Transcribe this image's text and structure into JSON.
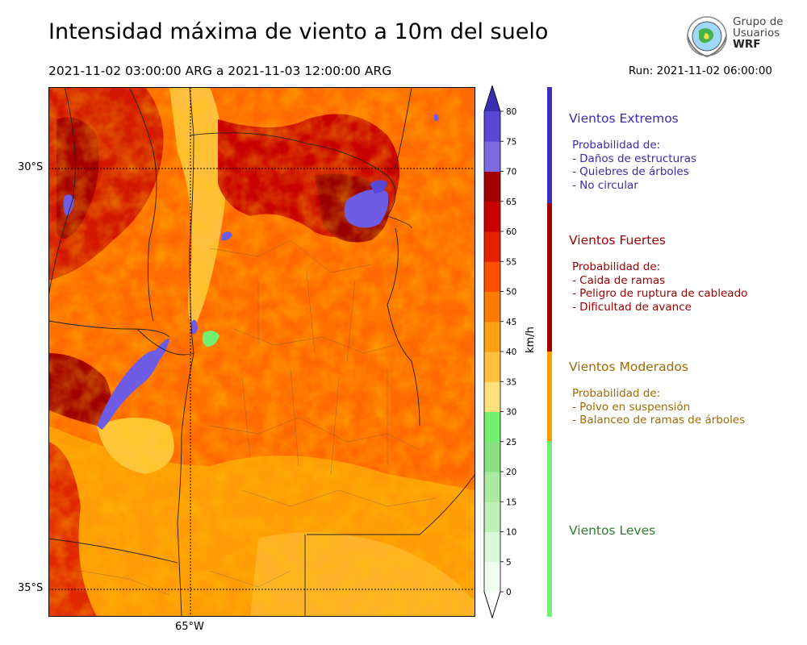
{
  "title": "Intensidad máxima de viento a 10m del suelo",
  "period": "2021-11-02 03:00:00 ARG  a  2021-11-03 12:00:00 ARG",
  "run": "Run: 2021-11-02 06:00:00",
  "logo": {
    "line1": "Grupo de",
    "line2": "Usuarios",
    "line3": "WRF"
  },
  "map": {
    "lat_labels": [
      "30°S",
      "35°S"
    ],
    "lon_labels": [
      "65°W"
    ]
  },
  "colorbar": {
    "units": "km/h",
    "ticks": [
      "0",
      "5",
      "10",
      "15",
      "20",
      "25",
      "30",
      "35",
      "40",
      "45",
      "50",
      "55",
      "60",
      "65",
      "70",
      "75",
      "80"
    ],
    "colors": [
      "#f0fff0",
      "#d8f8d8",
      "#c0f0b8",
      "#a8eaa0",
      "#88e080",
      "#74f070",
      "#ffe07a",
      "#ffc040",
      "#ffa010",
      "#ff7a00",
      "#ff5000",
      "#e52000",
      "#c80000",
      "#a00000",
      "#7c6be0",
      "#5a48d4",
      "#3c2cb0"
    ]
  },
  "legend": [
    {
      "title": "Vientos Extremos",
      "color": "#3a2bab",
      "lines": [
        "Probabilidad de:",
        "- Daños de estructuras",
        "- Quiebres de árboles",
        "- No circular"
      ]
    },
    {
      "title": "Vientos Fuertes",
      "color": "#9b0000",
      "lines": [
        "Probabilidad de:",
        "- Caida de ramas",
        "- Peligro de ruptura de cableado",
        "- Dificultad de avance"
      ]
    },
    {
      "title": "Vientos Moderados",
      "color": "#a06a00",
      "lines": [
        "Probabilidad de:",
        "- Polvo en suspensión",
        "- Balanceo de ramas de árboles"
      ]
    },
    {
      "title": "Vientos Leves",
      "color": "#2e7d32",
      "lines": []
    }
  ],
  "legend_bar_colors": [
    "#3d2dbb",
    "#a40000",
    "#ff9c00",
    "#74f070"
  ]
}
